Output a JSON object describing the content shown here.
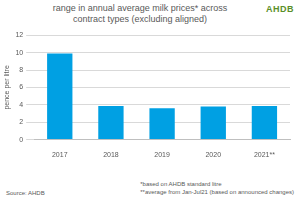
{
  "chart_data": {
    "type": "bar",
    "title": "range in annual average milk prices* across contract types (excluding aligned)",
    "y_label": "pence per litre",
    "categories": [
      "2017",
      "2018",
      "2019",
      "2020",
      "2021**"
    ],
    "values": [
      9.9,
      3.85,
      3.6,
      3.8,
      3.85
    ],
    "color": "#00a0e3",
    "ylim": [
      0,
      12
    ],
    "yticks": [
      0,
      2,
      4,
      6,
      8,
      10,
      12
    ],
    "grid": true,
    "legend": false,
    "annotations": [
      "Source: AHDB",
      "*based on AHDB standard litre",
      "**average from Jan-Jul21 (based on announced changes)"
    ],
    "logo_text": "AHDB"
  }
}
